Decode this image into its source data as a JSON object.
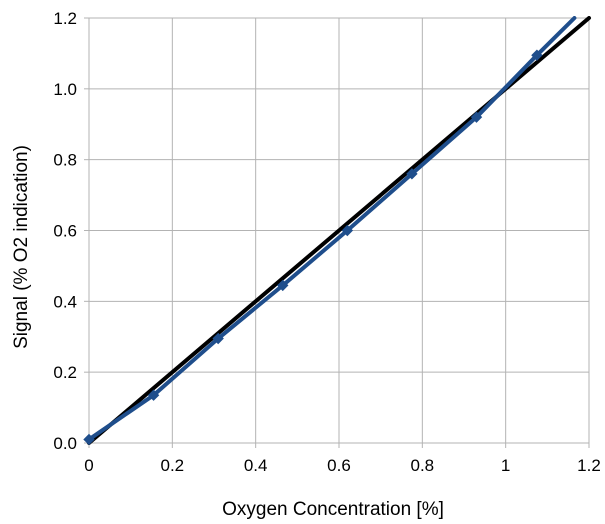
{
  "chart_data": {
    "type": "line",
    "title": "",
    "xlabel": "Oxygen Concentration [%]",
    "ylabel": "Signal (% O2 indication)",
    "xlim": [
      0,
      1.2
    ],
    "ylim": [
      0,
      1.2
    ],
    "xticks": [
      0,
      0.2,
      0.4,
      0.6,
      0.8,
      1,
      1.2
    ],
    "xtick_labels": [
      "0",
      "0.2",
      "0.4",
      "0.6",
      "0.8",
      "1",
      "1.2"
    ],
    "yticks": [
      0,
      0.2,
      0.4,
      0.6,
      0.8,
      1.0,
      1.2
    ],
    "ytick_labels": [
      "0.0",
      "0.2",
      "0.4",
      "0.6",
      "0.8",
      "1.0",
      "1.2"
    ],
    "grid": true,
    "legend": "none",
    "series": [
      {
        "style": "line",
        "color": "#000000",
        "x": [
          0,
          1.2
        ],
        "y": [
          0,
          1.2
        ]
      },
      {
        "style": "line-with-markers",
        "color": "#1f4e8c",
        "x": [
          0,
          0.155,
          0.31,
          0.465,
          0.62,
          0.775,
          0.93,
          1.075,
          1.165
        ],
        "y": [
          0.01,
          0.135,
          0.295,
          0.445,
          0.6,
          0.76,
          0.92,
          1.095,
          1.2
        ],
        "markers": [
          true,
          true,
          true,
          true,
          true,
          true,
          true,
          true,
          false
        ]
      }
    ]
  }
}
